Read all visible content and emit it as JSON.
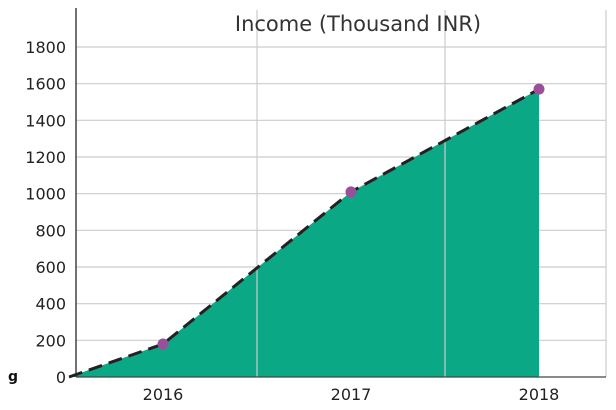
{
  "chart_data": {
    "type": "area",
    "title": "Income (Thousand INR)",
    "xlabel": "",
    "ylabel": "",
    "categories": [
      "2016",
      "2017",
      "2018"
    ],
    "x": [
      2015.5,
      2016,
      2017,
      2018
    ],
    "values": [
      0,
      180,
      1010,
      1570
    ],
    "marked_points": [
      {
        "x": 2016,
        "y": 180
      },
      {
        "x": 2017,
        "y": 1010
      },
      {
        "x": 2018,
        "y": 1570
      }
    ],
    "y_ticks": [
      0,
      200,
      400,
      600,
      800,
      1000,
      1200,
      1400,
      1600,
      1800
    ],
    "ylim": [
      0,
      1800
    ],
    "grid": true,
    "legend": "none",
    "colors": {
      "fill": "#0aa884",
      "line": "#222222",
      "marker": "#9b4f9b",
      "grid": "#cccccc",
      "axis": "#444444"
    }
  },
  "stray_text": "g"
}
